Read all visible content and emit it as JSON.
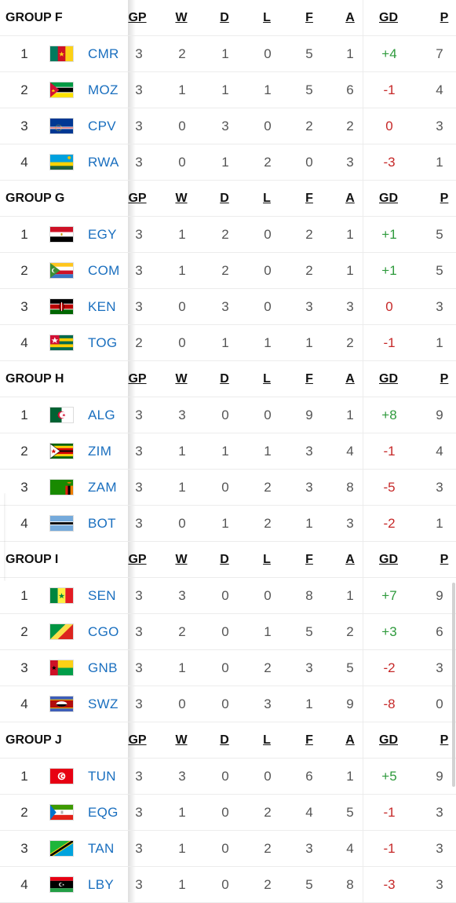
{
  "headers": {
    "gp": "GP",
    "w": "W",
    "d": "D",
    "l": "L",
    "f": "F",
    "a": "A",
    "gd": "GD",
    "p": "P"
  },
  "groups": [
    {
      "name": "GROUP F",
      "rows": [
        {
          "pos": "1",
          "flag": "flag-cameroon",
          "code": "CMR",
          "gp": "3",
          "w": "2",
          "d": "1",
          "l": "0",
          "f": "5",
          "a": "1",
          "gd": "+4",
          "p": "7"
        },
        {
          "pos": "2",
          "flag": "flag-mozambique",
          "code": "MOZ",
          "gp": "3",
          "w": "1",
          "d": "1",
          "l": "1",
          "f": "5",
          "a": "6",
          "gd": "-1",
          "p": "4"
        },
        {
          "pos": "3",
          "flag": "flag-cape-verde",
          "code": "CPV",
          "gp": "3",
          "w": "0",
          "d": "3",
          "l": "0",
          "f": "2",
          "a": "2",
          "gd": "0",
          "p": "3"
        },
        {
          "pos": "4",
          "flag": "flag-rwanda",
          "code": "RWA",
          "gp": "3",
          "w": "0",
          "d": "1",
          "l": "2",
          "f": "0",
          "a": "3",
          "gd": "-3",
          "p": "1"
        }
      ]
    },
    {
      "name": "GROUP G",
      "rows": [
        {
          "pos": "1",
          "flag": "flag-egypt",
          "code": "EGY",
          "gp": "3",
          "w": "1",
          "d": "2",
          "l": "0",
          "f": "2",
          "a": "1",
          "gd": "+1",
          "p": "5"
        },
        {
          "pos": "2",
          "flag": "flag-comoros",
          "code": "COM",
          "gp": "3",
          "w": "1",
          "d": "2",
          "l": "0",
          "f": "2",
          "a": "1",
          "gd": "+1",
          "p": "5"
        },
        {
          "pos": "3",
          "flag": "flag-kenya",
          "code": "KEN",
          "gp": "3",
          "w": "0",
          "d": "3",
          "l": "0",
          "f": "3",
          "a": "3",
          "gd": "0",
          "p": "3"
        },
        {
          "pos": "4",
          "flag": "flag-togo",
          "code": "TOG",
          "gp": "2",
          "w": "0",
          "d": "1",
          "l": "1",
          "f": "1",
          "a": "2",
          "gd": "-1",
          "p": "1"
        }
      ]
    },
    {
      "name": "GROUP H",
      "rows": [
        {
          "pos": "1",
          "flag": "flag-algeria",
          "code": "ALG",
          "gp": "3",
          "w": "3",
          "d": "0",
          "l": "0",
          "f": "9",
          "a": "1",
          "gd": "+8",
          "p": "9"
        },
        {
          "pos": "2",
          "flag": "flag-zimbabwe",
          "code": "ZIM",
          "gp": "3",
          "w": "1",
          "d": "1",
          "l": "1",
          "f": "3",
          "a": "4",
          "gd": "-1",
          "p": "4"
        },
        {
          "pos": "3",
          "flag": "flag-zambia",
          "code": "ZAM",
          "gp": "3",
          "w": "1",
          "d": "0",
          "l": "2",
          "f": "3",
          "a": "8",
          "gd": "-5",
          "p": "3"
        },
        {
          "pos": "4",
          "flag": "flag-botswana",
          "code": "BOT",
          "gp": "3",
          "w": "0",
          "d": "1",
          "l": "2",
          "f": "1",
          "a": "3",
          "gd": "-2",
          "p": "1"
        }
      ]
    },
    {
      "name": "GROUP I",
      "rows": [
        {
          "pos": "1",
          "flag": "flag-senegal",
          "code": "SEN",
          "gp": "3",
          "w": "3",
          "d": "0",
          "l": "0",
          "f": "8",
          "a": "1",
          "gd": "+7",
          "p": "9"
        },
        {
          "pos": "2",
          "flag": "flag-congo",
          "code": "CGO",
          "gp": "3",
          "w": "2",
          "d": "0",
          "l": "1",
          "f": "5",
          "a": "2",
          "gd": "+3",
          "p": "6"
        },
        {
          "pos": "3",
          "flag": "flag-guinea-bissau",
          "code": "GNB",
          "gp": "3",
          "w": "1",
          "d": "0",
          "l": "2",
          "f": "3",
          "a": "5",
          "gd": "-2",
          "p": "3"
        },
        {
          "pos": "4",
          "flag": "flag-eswatini",
          "code": "SWZ",
          "gp": "3",
          "w": "0",
          "d": "0",
          "l": "3",
          "f": "1",
          "a": "9",
          "gd": "-8",
          "p": "0"
        }
      ]
    },
    {
      "name": "GROUP J",
      "rows": [
        {
          "pos": "1",
          "flag": "flag-tunisia",
          "code": "TUN",
          "gp": "3",
          "w": "3",
          "d": "0",
          "l": "0",
          "f": "6",
          "a": "1",
          "gd": "+5",
          "p": "9"
        },
        {
          "pos": "2",
          "flag": "flag-equatorial-guinea",
          "code": "EQG",
          "gp": "3",
          "w": "1",
          "d": "0",
          "l": "2",
          "f": "4",
          "a": "5",
          "gd": "-1",
          "p": "3"
        },
        {
          "pos": "3",
          "flag": "flag-tanzania",
          "code": "TAN",
          "gp": "3",
          "w": "1",
          "d": "0",
          "l": "2",
          "f": "3",
          "a": "4",
          "gd": "-1",
          "p": "3"
        },
        {
          "pos": "4",
          "flag": "flag-libya",
          "code": "LBY",
          "gp": "3",
          "w": "1",
          "d": "0",
          "l": "2",
          "f": "5",
          "a": "8",
          "gd": "-3",
          "p": "3"
        }
      ]
    }
  ],
  "colors": {
    "team_link": "#1a6fbf",
    "gd_positive": "#2e9a3c",
    "gd_negative": "#c62828"
  }
}
